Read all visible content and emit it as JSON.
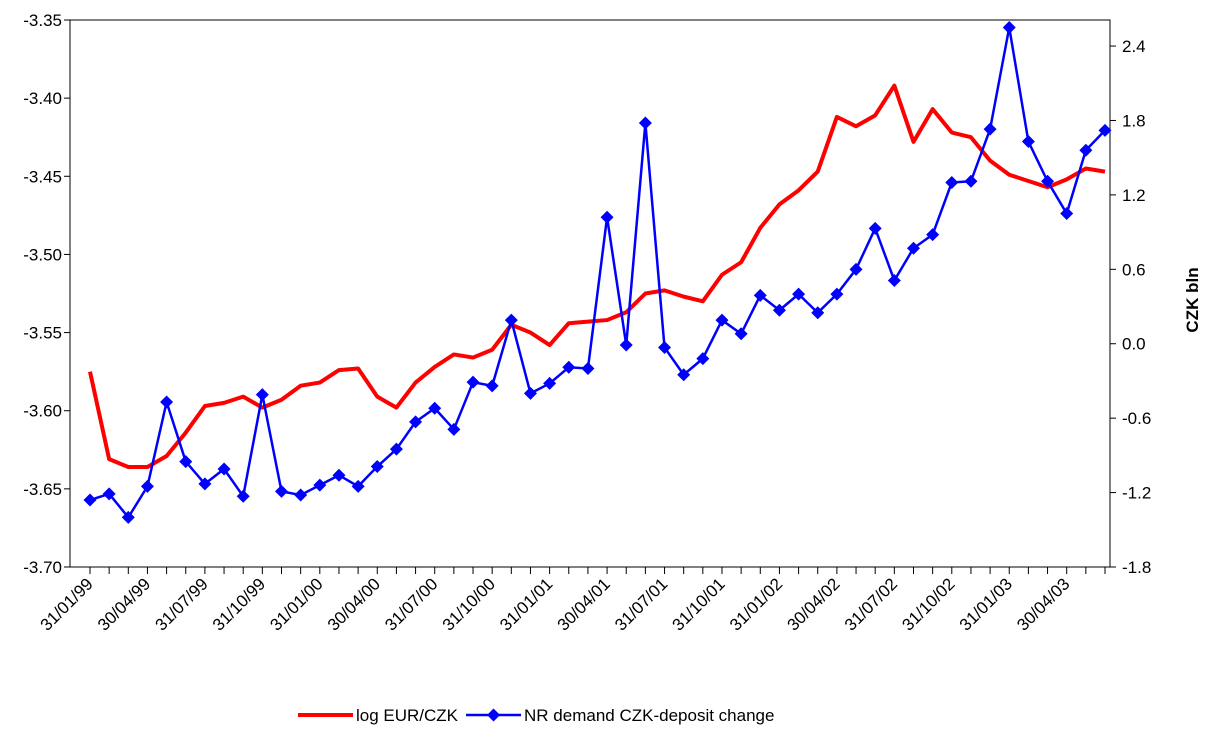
{
  "chart_data": {
    "type": "line",
    "categories": [
      "31/01/99",
      null,
      null,
      "30/04/99",
      null,
      null,
      "31/07/99",
      null,
      null,
      "31/10/99",
      null,
      null,
      "31/01/00",
      null,
      null,
      "30/04/00",
      null,
      null,
      "31/07/00",
      null,
      null,
      "31/10/00",
      null,
      null,
      "31/01/01",
      null,
      null,
      "30/04/01",
      null,
      null,
      "31/07/01",
      null,
      null,
      "31/10/01",
      null,
      null,
      "31/01/02",
      null,
      null,
      "30/04/02",
      null,
      null,
      "31/07/02",
      null,
      null,
      "31/10/02",
      null,
      null,
      "31/01/03",
      null,
      null,
      "30/04/03",
      null,
      null
    ],
    "series": [
      {
        "name": "log EUR/CZK",
        "color": "#ff0000",
        "values": [
          -3.575,
          -3.631,
          -3.636,
          -3.636,
          -3.629,
          -3.614,
          -3.597,
          -3.595,
          -3.591,
          -3.598,
          -3.593,
          -3.584,
          -3.582,
          -3.574,
          -3.573,
          -3.591,
          -3.598,
          -3.582,
          -3.572,
          -3.564,
          -3.566,
          -3.561,
          -3.545,
          -3.55,
          -3.558,
          -3.544,
          -3.543,
          -3.542,
          -3.537,
          -3.525,
          -3.523,
          -3.527,
          -3.53,
          -3.513,
          -3.505,
          -3.483,
          -3.468,
          -3.459,
          -3.447,
          -3.412,
          -3.418,
          -3.411,
          -3.392,
          -3.428,
          -3.407,
          -3.422,
          -3.425,
          -3.44,
          -3.449,
          -3.453,
          -3.457,
          -3.452,
          -3.445,
          -3.447
        ]
      },
      {
        "name": "NR demand CZK-deposit change",
        "color": "#0000ff",
        "axis": "y2",
        "marker": "diamond",
        "values": [
          -1.26,
          -1.21,
          -1.4,
          -1.15,
          -0.47,
          -0.95,
          -1.13,
          -1.01,
          -1.23,
          -0.41,
          -1.19,
          -1.22,
          -1.14,
          -1.06,
          -1.15,
          -0.99,
          -0.85,
          -0.63,
          -0.52,
          -0.69,
          -0.31,
          -0.34,
          0.19,
          -0.4,
          -0.32,
          -0.19,
          -0.2,
          1.02,
          -0.01,
          1.78,
          -0.03,
          -0.25,
          -0.12,
          0.19,
          0.08,
          0.39,
          0.27,
          0.4,
          0.25,
          0.4,
          0.6,
          0.93,
          0.51,
          0.77,
          0.88,
          1.3,
          1.31,
          1.73,
          2.55,
          1.63,
          1.31,
          1.05,
          1.56,
          1.72
        ]
      }
    ],
    "ylim": [
      -3.7,
      -3.35
    ],
    "yticks": [
      {
        "value": -3.7,
        "label": "-3.70"
      },
      -3.65,
      {
        "value": -3.6,
        "label": "-3.60"
      },
      -3.55,
      {
        "value": -3.5,
        "label": "-3.50"
      },
      -3.45,
      {
        "value": -3.4,
        "label": "-3.40"
      },
      -3.35
    ],
    "y2lim": [
      -1.8,
      2.61
    ],
    "y2ticks": [
      -1.8,
      -1.2,
      -0.6,
      {
        "value": 0,
        "label": "0.0"
      },
      0.6,
      1.2,
      1.8,
      2.4
    ],
    "y2label": "CZK bln",
    "grid": false,
    "legend": "bottom"
  }
}
